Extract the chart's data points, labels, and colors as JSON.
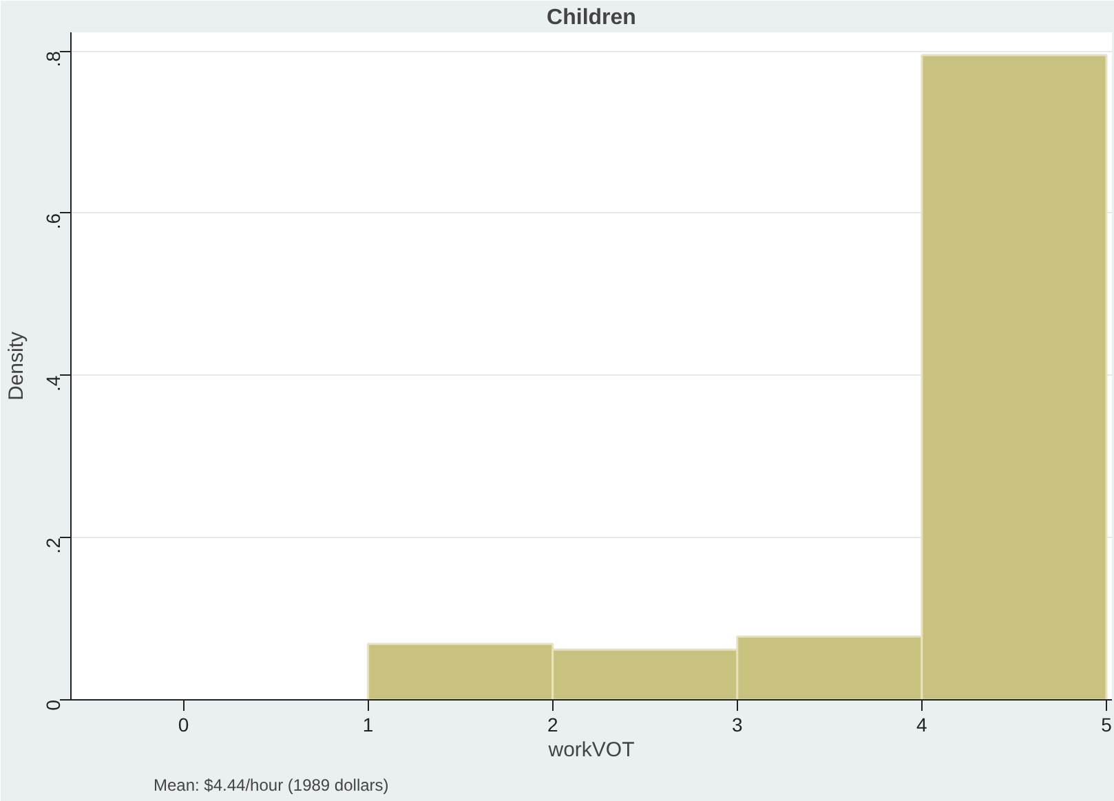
{
  "chart_data": {
    "type": "histogram",
    "title": "Children",
    "xlabel": "workVOT",
    "ylabel": "Density",
    "bins": [
      1,
      2,
      3,
      4,
      5
    ],
    "values": [
      0.069,
      0.062,
      0.078,
      0.795
    ],
    "color": "#c9c27f",
    "xlim": [
      -0.61,
      5.03
    ],
    "xticks": [
      0,
      1,
      2,
      3,
      4,
      5
    ],
    "ylim": [
      0,
      0.823
    ],
    "yticks": [
      0,
      {
        "value": 0.2,
        "label": ".2"
      },
      {
        "value": 0.4,
        "label": ".4"
      },
      {
        "value": 0.6,
        "label": ".6"
      },
      {
        "value": 0.8,
        "label": ".8"
      }
    ],
    "grid": "y",
    "annotations": [
      "Mean: $4.44/hour (1989 dollars)"
    ]
  }
}
